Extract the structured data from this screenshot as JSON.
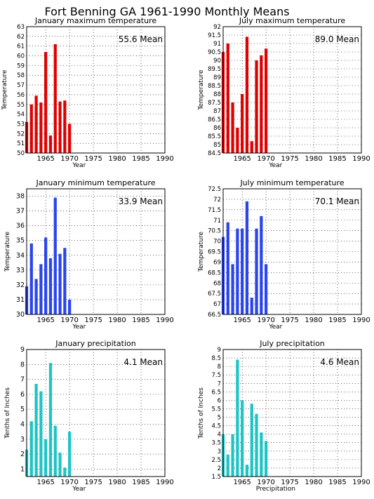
{
  "figure_title": "Fort Benning GA  1961-1990 Monthly Means",
  "colors": {
    "red": "#e00000",
    "blue": "#2a44ee",
    "cyan": "#1ec4c4",
    "grid": "#000000"
  },
  "chart_data": [
    {
      "id": "jan-max",
      "type": "bar",
      "title": "January maximum temperature",
      "ylabel": "Temperature",
      "xlabel": "Year",
      "color": "red",
      "mean_label": "55.6 Mean",
      "x": [
        1961,
        1962,
        1963,
        1964,
        1965,
        1966,
        1967,
        1968,
        1969,
        1970
      ],
      "values": [
        53.2,
        55.0,
        55.9,
        55.2,
        60.4,
        51.8,
        61.2,
        55.3,
        55.4,
        53.0
      ],
      "xlim": [
        1961,
        1990
      ],
      "ylim": [
        50,
        63
      ],
      "xticks": [
        1965,
        1970,
        1975,
        1980,
        1985,
        1990
      ],
      "yticks": [
        50,
        51,
        52,
        53,
        54,
        55,
        56,
        57,
        58,
        59,
        60,
        61,
        62,
        63
      ],
      "ytick_labels": [
        "50",
        "51",
        "52",
        "53",
        "54",
        "55",
        "56",
        "57",
        "58",
        "59",
        "60",
        "61",
        "62",
        "63"
      ],
      "grid": true
    },
    {
      "id": "jul-max",
      "type": "bar",
      "title": "July maximum temperature",
      "ylabel": "Temperature",
      "xlabel": "Year",
      "color": "red",
      "mean_label": "89.0 Mean",
      "x": [
        1961,
        1962,
        1963,
        1964,
        1965,
        1966,
        1967,
        1968,
        1969,
        1970
      ],
      "values": [
        90.5,
        91.0,
        87.5,
        86.0,
        88.0,
        91.4,
        85.2,
        90.0,
        90.3,
        90.7
      ],
      "xlim": [
        1961,
        1990
      ],
      "ylim": [
        84.5,
        92
      ],
      "xticks": [
        1965,
        1970,
        1975,
        1980,
        1985,
        1990
      ],
      "yticks": [
        84.5,
        85,
        85.5,
        86,
        86.5,
        87,
        87.5,
        88,
        88.5,
        89,
        89.5,
        90,
        90.5,
        91,
        91.5,
        92
      ],
      "ytick_labels": [
        "84.5",
        "85",
        "85.5",
        "86",
        "86.5",
        "87",
        "87.5",
        "88",
        "88.5",
        "89",
        "89.5",
        "90",
        "90.5",
        "91",
        "91.5",
        "92"
      ],
      "grid": true
    },
    {
      "id": "jan-min",
      "type": "bar",
      "title": "January minimum temperature",
      "ylabel": "Temperature",
      "xlabel": "Year",
      "color": "blue",
      "mean_label": "33.9 Mean",
      "x": [
        1961,
        1962,
        1963,
        1964,
        1965,
        1966,
        1967,
        1968,
        1969,
        1970
      ],
      "values": [
        31.9,
        34.8,
        32.4,
        33.4,
        35.2,
        33.8,
        37.9,
        34.1,
        34.5,
        31.0
      ],
      "xlim": [
        1961,
        1990
      ],
      "ylim": [
        30,
        38.5
      ],
      "xticks": [
        1965,
        1970,
        1975,
        1980,
        1985,
        1990
      ],
      "yticks": [
        30,
        31,
        32,
        33,
        34,
        35,
        36,
        37,
        38
      ],
      "ytick_labels": [
        "30",
        "31",
        "32",
        "33",
        "34",
        "35",
        "36",
        "37",
        "38"
      ],
      "grid": true
    },
    {
      "id": "jul-min",
      "type": "bar",
      "title": "July minimum temperature",
      "ylabel": "Temperature",
      "xlabel": "Year",
      "color": "blue",
      "mean_label": "70.1 Mean",
      "x": [
        1961,
        1962,
        1963,
        1964,
        1965,
        1966,
        1967,
        1968,
        1969,
        1970
      ],
      "values": [
        70.2,
        70.9,
        68.9,
        70.6,
        70.6,
        71.9,
        67.3,
        70.6,
        71.2,
        68.9
      ],
      "xlim": [
        1961,
        1990
      ],
      "ylim": [
        66.5,
        72.5
      ],
      "xticks": [
        1965,
        1970,
        1975,
        1980,
        1985,
        1990
      ],
      "yticks": [
        66.5,
        67,
        67.5,
        68,
        68.5,
        69,
        69.5,
        70,
        70.5,
        71,
        71.5,
        72,
        72.5
      ],
      "ytick_labels": [
        "66.5",
        "67",
        "67.5",
        "68",
        "68.5",
        "69",
        "69.5",
        "70",
        "70.5",
        "71",
        "71.5",
        "72",
        "72.5"
      ],
      "grid": true
    },
    {
      "id": "jan-precip",
      "type": "bar",
      "title": "January precipitation",
      "ylabel": "Tenths of Inches",
      "xlabel": "Year",
      "color": "cyan",
      "mean_label": "4.1 Mean",
      "x": [
        1961,
        1962,
        1963,
        1964,
        1965,
        1966,
        1967,
        1968,
        1969,
        1970
      ],
      "values": [
        2.3,
        4.2,
        6.7,
        6.2,
        3.0,
        8.1,
        3.9,
        2.1,
        1.1,
        3.5
      ],
      "xlim": [
        1961,
        1990
      ],
      "ylim": [
        0.5,
        9
      ],
      "xticks": [
        1965,
        1970,
        1975,
        1980,
        1985,
        1990
      ],
      "yticks": [
        1,
        2,
        3,
        4,
        5,
        6,
        7,
        8,
        9
      ],
      "ytick_labels": [
        "1",
        "2",
        "3",
        "4",
        "5",
        "6",
        "7",
        "8",
        "9"
      ],
      "grid": true
    },
    {
      "id": "jul-precip",
      "type": "bar",
      "title": "July precipitation",
      "ylabel": "Tenths of Inches",
      "xlabel": "Precipitation",
      "color": "cyan",
      "mean_label": "4.6 Mean",
      "x": [
        1961,
        1962,
        1963,
        1964,
        1965,
        1966,
        1967,
        1968,
        1969,
        1970
      ],
      "values": [
        4.0,
        2.8,
        4.0,
        8.4,
        6.0,
        2.2,
        5.8,
        5.2,
        4.1,
        3.6
      ],
      "xlim": [
        1961,
        1990
      ],
      "ylim": [
        1.5,
        9
      ],
      "xticks": [
        1965,
        1970,
        1975,
        1980,
        1985,
        1990
      ],
      "yticks": [
        1.5,
        2,
        2.5,
        3,
        3.5,
        4,
        4.5,
        5,
        5.5,
        6,
        6.5,
        7,
        7.5,
        8,
        8.5,
        9
      ],
      "ytick_labels": [
        "1.5",
        "2",
        "2.5",
        "3",
        "3.5",
        "4",
        "4.5",
        "5",
        "5.5",
        "6",
        "6.5",
        "7",
        "7.5",
        "8",
        "8.5",
        "9"
      ],
      "grid": true
    }
  ]
}
